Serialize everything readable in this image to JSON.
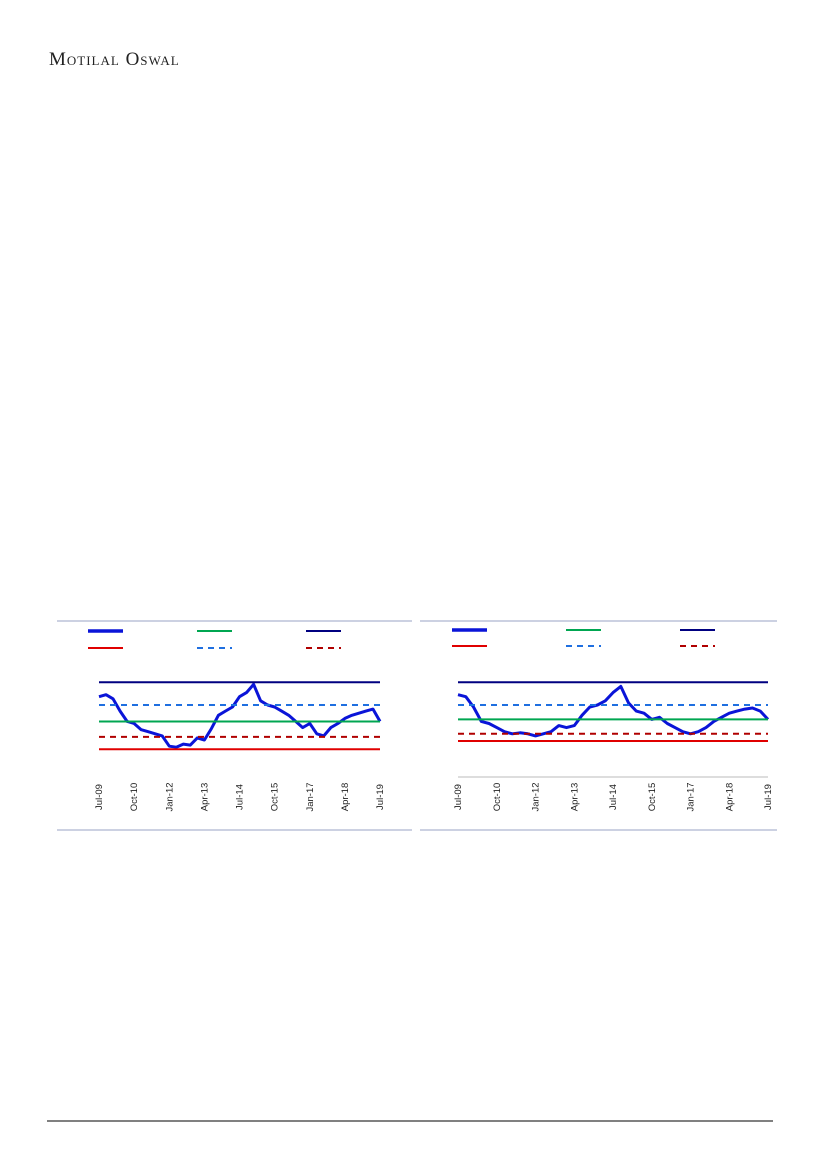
{
  "header": {
    "brand": "Motilal Oswal"
  },
  "chart_data": [
    {
      "type": "line",
      "categories": [
        "Jul-09",
        null,
        null,
        null,
        null,
        "Oct-10",
        null,
        null,
        null,
        null,
        "Jan-12",
        null,
        null,
        null,
        null,
        "Apr-13",
        null,
        null,
        null,
        null,
        "Jul-14",
        null,
        null,
        null,
        null,
        "Oct-15",
        null,
        null,
        null,
        null,
        "Jan-17",
        null,
        null,
        null,
        null,
        "Apr-18",
        null,
        null,
        null,
        null,
        "Jul-19"
      ],
      "ylim": [
        0,
        100
      ],
      "series": [
        {
          "color": "#0a14d8",
          "values": [
            76,
            78,
            74,
            62,
            52,
            50,
            44,
            42,
            40,
            38,
            28,
            27,
            30,
            29,
            36,
            34,
            45,
            58,
            62,
            66,
            76,
            80,
            88,
            72,
            68,
            66,
            62,
            58,
            52,
            46,
            50,
            40,
            38,
            46,
            50,
            55,
            58,
            60,
            62,
            64,
            52
          ]
        },
        {
          "color": "#00a651",
          "value": 52
        },
        {
          "color": "#000080",
          "value": 90
        },
        {
          "color": "#e00000",
          "value": 25
        },
        {
          "color": "#1f6fe0",
          "value": 68,
          "dashed": true
        },
        {
          "color": "#b00000",
          "value": 37,
          "dashed": true
        }
      ]
    },
    {
      "type": "line",
      "categories": [
        "Jul-09",
        null,
        null,
        null,
        null,
        "Oct-10",
        null,
        null,
        null,
        null,
        "Jan-12",
        null,
        null,
        null,
        null,
        "Apr-13",
        null,
        null,
        null,
        null,
        "Jul-14",
        null,
        null,
        null,
        null,
        "Oct-15",
        null,
        null,
        null,
        null,
        "Jan-17",
        null,
        null,
        null,
        null,
        "Apr-18",
        null,
        null,
        null,
        null,
        "Jul-19"
      ],
      "ylim": [
        0,
        100
      ],
      "series": [
        {
          "color": "#0a14d8",
          "values": [
            78,
            76,
            66,
            52,
            50,
            46,
            42,
            40,
            41,
            40,
            38,
            40,
            42,
            48,
            46,
            48,
            58,
            66,
            68,
            72,
            80,
            86,
            70,
            62,
            60,
            54,
            56,
            50,
            46,
            42,
            40,
            42,
            46,
            52,
            56,
            60,
            62,
            64,
            65,
            62,
            54
          ]
        },
        {
          "color": "#00a651",
          "value": 54
        },
        {
          "color": "#000080",
          "value": 90
        },
        {
          "color": "#e00000",
          "value": 33
        },
        {
          "color": "#1f6fe0",
          "value": 68,
          "dashed": true
        },
        {
          "color": "#b00000",
          "value": 40,
          "dashed": true
        }
      ]
    }
  ]
}
